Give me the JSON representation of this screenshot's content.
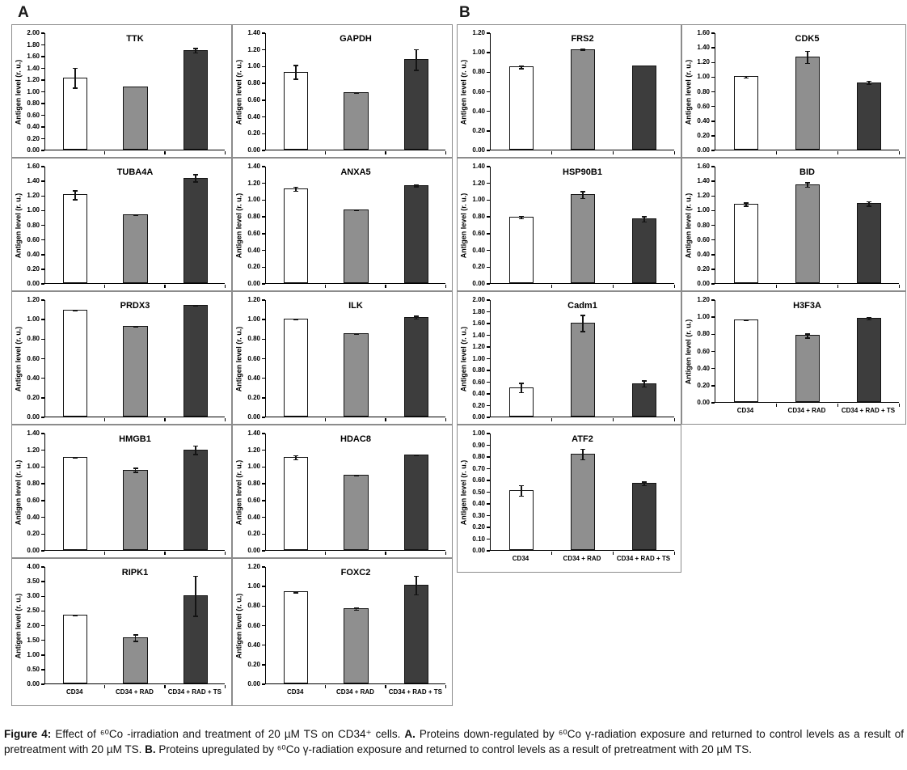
{
  "panels": [
    {
      "label": "A"
    },
    {
      "label": "B"
    }
  ],
  "axis": {
    "ylabel": "Antigen level (r. u.)",
    "categories": [
      "CD34",
      "CD34 + RAD",
      "CD34 + RAD + TS"
    ]
  },
  "colors": {
    "bar_fills": [
      "#ffffff",
      "#8f8f8f",
      "#3d3d3d"
    ],
    "bar_border": "#141414",
    "axis_line": "#000000",
    "box_border": "#8c8c8c"
  },
  "chart_data": [
    {
      "type": "bar",
      "panel": "A",
      "title": "TTK",
      "ylabel": "Antigen level (r. u.)",
      "ylim": [
        0,
        2.0
      ],
      "ystep": 0.2,
      "values": [
        1.23,
        1.08,
        1.7
      ],
      "errors": [
        0.18,
        0.01,
        0.05
      ],
      "show_x_labels": false
    },
    {
      "type": "bar",
      "panel": "A",
      "title": "GAPDH",
      "ylabel": "Antigen level (r. u.)",
      "ylim": [
        0,
        1.4
      ],
      "ystep": 0.2,
      "values": [
        0.93,
        0.69,
        1.08
      ],
      "errors": [
        0.09,
        0.01,
        0.13
      ],
      "show_x_labels": false
    },
    {
      "type": "bar",
      "panel": "A",
      "title": "TUBA4A",
      "ylabel": "Antigen level (r. u.)",
      "ylim": [
        0,
        1.6
      ],
      "ystep": 0.2,
      "values": [
        1.21,
        0.94,
        1.44
      ],
      "errors": [
        0.07,
        0.01,
        0.06
      ],
      "show_x_labels": false
    },
    {
      "type": "bar",
      "panel": "A",
      "title": "ANXA5",
      "ylabel": "Antigen level (r. u.)",
      "ylim": [
        0,
        1.4
      ],
      "ystep": 0.2,
      "values": [
        1.13,
        0.88,
        1.17
      ],
      "errors": [
        0.03,
        0.01,
        0.02
      ],
      "show_x_labels": false
    },
    {
      "type": "bar",
      "panel": "A",
      "title": "PRDX3",
      "ylabel": "Antigen level (r. u.)",
      "ylim": [
        0,
        1.2
      ],
      "ystep": 0.2,
      "values": [
        1.09,
        0.93,
        1.14
      ],
      "errors": [
        0.01,
        0.005,
        0.005
      ],
      "show_x_labels": false
    },
    {
      "type": "bar",
      "panel": "A",
      "title": "ILK",
      "ylabel": "Antigen level (r. u.)",
      "ylim": [
        0,
        1.2
      ],
      "ystep": 0.2,
      "values": [
        1.0,
        0.85,
        1.02
      ],
      "errors": [
        0.01,
        0.01,
        0.02
      ],
      "show_x_labels": false
    },
    {
      "type": "bar",
      "panel": "A",
      "title": "HMGB1",
      "ylabel": "Antigen level (r. u.)",
      "ylim": [
        0,
        1.4
      ],
      "ystep": 0.2,
      "values": [
        1.11,
        0.96,
        1.2
      ],
      "errors": [
        0.01,
        0.03,
        0.06
      ],
      "show_x_labels": false
    },
    {
      "type": "bar",
      "panel": "A",
      "title": "HDAC8",
      "ylabel": "Antigen level (r. u.)",
      "ylim": [
        0,
        1.4
      ],
      "ystep": 0.2,
      "values": [
        1.11,
        0.9,
        1.14
      ],
      "errors": [
        0.03,
        0.005,
        0.01
      ],
      "show_x_labels": false
    },
    {
      "type": "bar",
      "panel": "A",
      "title": "RIPK1",
      "ylabel": "Antigen level (r. u.)",
      "ylim": [
        0,
        4.0
      ],
      "ystep": 0.5,
      "values": [
        2.35,
        1.57,
        3.0
      ],
      "errors": [
        0.03,
        0.13,
        0.7
      ],
      "show_x_labels": true
    },
    {
      "type": "bar",
      "panel": "A",
      "title": "FOXC2",
      "ylabel": "Antigen level (r. u.)",
      "ylim": [
        0,
        1.2
      ],
      "ystep": 0.2,
      "values": [
        0.94,
        0.77,
        1.01
      ],
      "errors": [
        0.01,
        0.02,
        0.1
      ],
      "show_x_labels": true
    },
    {
      "type": "bar",
      "panel": "B",
      "title": "FRS2",
      "ylabel": "Antigen level (r. u.)",
      "ylim": [
        0,
        1.2
      ],
      "ystep": 0.2,
      "values": [
        0.85,
        1.03,
        0.86
      ],
      "errors": [
        0.02,
        0.01,
        0
      ],
      "show_x_labels": false
    },
    {
      "type": "bar",
      "panel": "B",
      "title": "HSP90B1",
      "ylabel": "Antigen level (r. u.)",
      "ylim": [
        0,
        1.4
      ],
      "ystep": 0.2,
      "values": [
        0.79,
        1.06,
        0.77
      ],
      "errors": [
        0.02,
        0.05,
        0.04
      ],
      "show_x_labels": false
    },
    {
      "type": "bar",
      "panel": "B",
      "title": "Cadm1",
      "ylabel": "Antigen level (r. u.)",
      "ylim": [
        0,
        2.0
      ],
      "ystep": 0.2,
      "values": [
        0.5,
        1.6,
        0.57
      ],
      "errors": [
        0.09,
        0.15,
        0.06
      ],
      "show_x_labels": false
    },
    {
      "type": "bar",
      "panel": "B",
      "title": "ATF2",
      "ylabel": "Antigen level (r. u.)",
      "ylim": [
        0,
        1.0
      ],
      "ystep": 0.1,
      "values": [
        0.51,
        0.82,
        0.57
      ],
      "errors": [
        0.05,
        0.05,
        0.02
      ],
      "show_x_labels": true
    },
    {
      "type": "bar",
      "panel": "B",
      "title": "CDK5",
      "ylabel": "Antigen level (r. u.)",
      "ylim": [
        0,
        1.6
      ],
      "ystep": 0.2,
      "values": [
        1.0,
        1.27,
        0.92
      ],
      "errors": [
        0.02,
        0.09,
        0.03
      ],
      "show_x_labels": false
    },
    {
      "type": "bar",
      "panel": "B",
      "title": "BID",
      "ylabel": "Antigen level (r. u.)",
      "ylim": [
        0,
        1.6
      ],
      "ystep": 0.2,
      "values": [
        1.08,
        1.35,
        1.09
      ],
      "errors": [
        0.03,
        0.04,
        0.04
      ],
      "show_x_labels": false
    },
    {
      "type": "bar",
      "panel": "B",
      "title": "H3F3A",
      "ylabel": "Antigen level (r. u.)",
      "ylim": [
        0,
        1.2
      ],
      "ystep": 0.2,
      "values": [
        0.96,
        0.78,
        0.98
      ],
      "errors": [
        0.01,
        0.03,
        0.02
      ],
      "show_x_labels": true
    }
  ],
  "caption": {
    "segments": [
      {
        "text": "Figure 4: ",
        "bold": true
      },
      {
        "text": "Effect of ⁶⁰Co -irradiation and treatment of 20 µM TS on CD34⁺ cells. ",
        "bold": false
      },
      {
        "text": "A. ",
        "bold": true
      },
      {
        "text": "Proteins down-regulated by ⁶⁰Co γ-radiation exposure and returned to control levels as a result of pretreatment with 20 µM TS. ",
        "bold": false
      },
      {
        "text": "B. ",
        "bold": true
      },
      {
        "text": "Proteins upregulated by ⁶⁰Co γ-radiation exposure and returned to control levels as a result of pretreatment with 20 µM TS.",
        "bold": false
      }
    ]
  }
}
